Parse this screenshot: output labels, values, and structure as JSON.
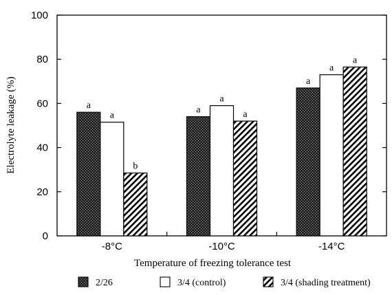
{
  "chart_data": {
    "type": "bar",
    "xlabel": "Temperature of freezing tolerance test",
    "ylabel": "Electrolyte leakage (%)",
    "ylim": [
      0,
      100
    ],
    "yticks": [
      "0",
      "20",
      "40",
      "60",
      "80",
      "100"
    ],
    "categories": [
      "-8°C",
      "-10°C",
      "-14°C"
    ],
    "series": [
      {
        "name": "2/26",
        "values": [
          56,
          54,
          67
        ],
        "labels": [
          "a",
          "a",
          "a"
        ],
        "fill": "dark-crosshatch"
      },
      {
        "name": "3/4 (control)",
        "values": [
          51.5,
          59,
          73
        ],
        "labels": [
          "a",
          "a",
          "a"
        ],
        "fill": "white"
      },
      {
        "name": "3/4 (shading treatment)",
        "values": [
          28.5,
          52,
          76.5
        ],
        "labels": [
          "b",
          "a",
          "a"
        ],
        "fill": "diagonal-hatch"
      }
    ],
    "grid": false,
    "legend": "bottom"
  }
}
